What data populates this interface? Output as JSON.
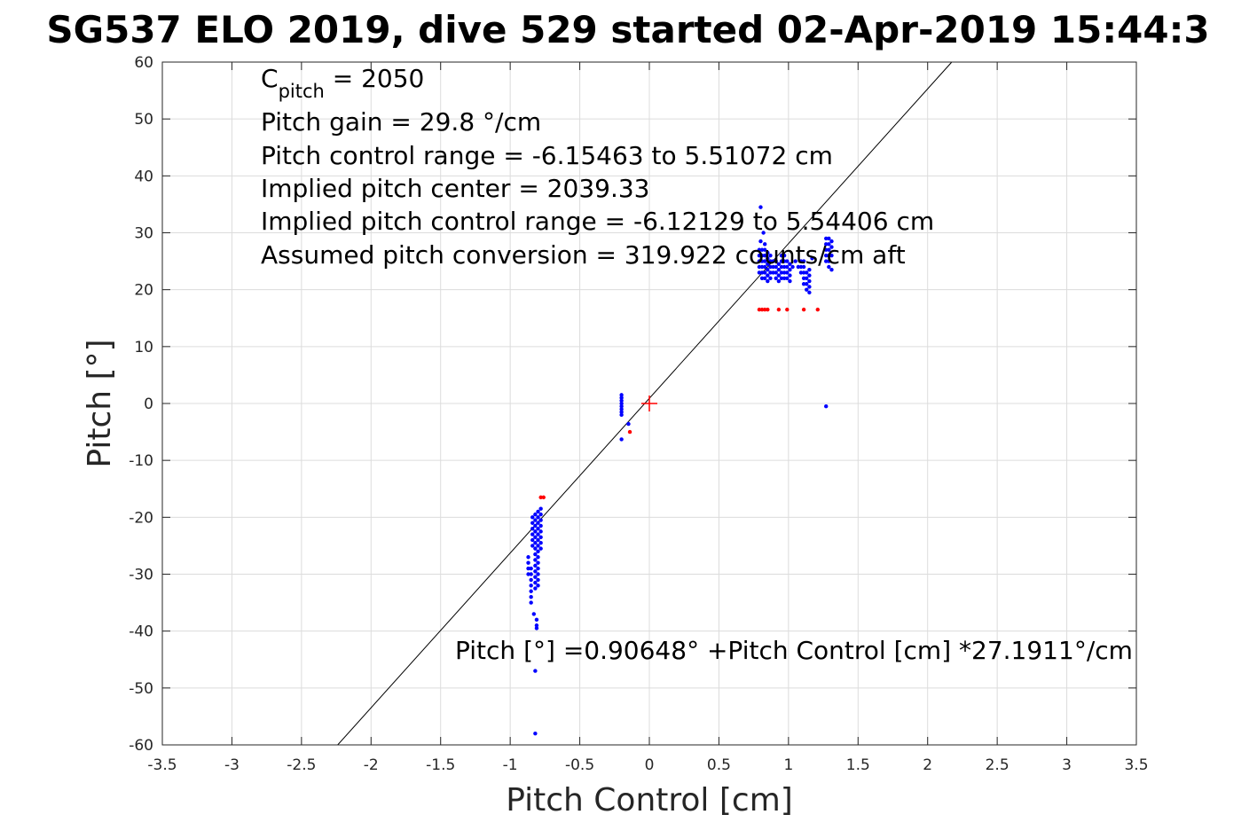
{
  "chart_data": {
    "type": "scatter",
    "title": "SG537 ELO 2019, dive 529 started 02-Apr-2019 15:44:3",
    "xlabel": "Pitch Control [cm]",
    "ylabel": "Pitch [°]",
    "xlim": [
      -3.5,
      3.5
    ],
    "ylim": [
      -60,
      60
    ],
    "xticks": [
      -3.5,
      -3,
      -2.5,
      -2,
      -1.5,
      -1,
      -0.5,
      0,
      0.5,
      1,
      1.5,
      2,
      2.5,
      3,
      3.5
    ],
    "xtick_labels": [
      "-3.5",
      "-3",
      "-2.5",
      "-2",
      "-1.5",
      "-1",
      "-0.5",
      "0",
      "0.5",
      "1",
      "1.5",
      "2",
      "2.5",
      "3",
      "3.5"
    ],
    "yticks": [
      -60,
      -50,
      -40,
      -30,
      -20,
      -10,
      0,
      10,
      20,
      30,
      40,
      50,
      60
    ],
    "ytick_labels": [
      "-60",
      "-50",
      "-40",
      "-30",
      "-20",
      "-10",
      "0",
      "10",
      "20",
      "30",
      "40",
      "50",
      "60"
    ],
    "grid": true,
    "annotations": {
      "c_pitch_main": "C",
      "c_pitch_sub": "pitch",
      "c_pitch_value": " = 2050",
      "pitch_gain": "Pitch gain = 29.8 °/cm",
      "pitch_control_range": "Pitch control range = -6.15463 to 5.51072 cm",
      "implied_pitch_center": "Implied pitch center = 2039.33",
      "implied_pitch_control_range": "Implied pitch control range = -6.12129 to 5.54406 cm",
      "assumed_pitch_conversion": "Assumed pitch conversion = 319.922 counts/cm aft",
      "fit_equation": "Pitch [°] =0.90648° +Pitch Control [cm] *27.1911°/cm"
    },
    "fit_line": {
      "intercept": 0.90648,
      "slope": 27.1911,
      "color": "#000000"
    },
    "center_marker": {
      "x": 0,
      "y": 0,
      "color": "#ff0000"
    },
    "series": [
      {
        "color": "#0000ff",
        "points": [
          [
            -0.82,
            -19.5
          ],
          [
            -0.82,
            -20.5
          ],
          [
            -0.82,
            -21.5
          ],
          [
            -0.82,
            -22.5
          ],
          [
            -0.82,
            -23.5
          ],
          [
            -0.82,
            -24.5
          ],
          [
            -0.82,
            -25.5
          ],
          [
            -0.82,
            -26.5
          ],
          [
            -0.82,
            -27.5
          ],
          [
            -0.82,
            -28.5
          ],
          [
            -0.82,
            -29.5
          ],
          [
            -0.82,
            -30.5
          ],
          [
            -0.82,
            -31.5
          ],
          [
            -0.82,
            -32.5
          ],
          [
            -0.8,
            -19.0
          ],
          [
            -0.8,
            -20.0
          ],
          [
            -0.8,
            -21.0
          ],
          [
            -0.8,
            -22.0
          ],
          [
            -0.8,
            -23.0
          ],
          [
            -0.8,
            -24.0
          ],
          [
            -0.8,
            -25.0
          ],
          [
            -0.8,
            -26.0
          ],
          [
            -0.8,
            -27.0
          ],
          [
            -0.8,
            -28.0
          ],
          [
            -0.8,
            -29.0
          ],
          [
            -0.8,
            -30.0
          ],
          [
            -0.8,
            -31.0
          ],
          [
            -0.8,
            -32.0
          ],
          [
            -0.84,
            -20.0
          ],
          [
            -0.84,
            -21.0
          ],
          [
            -0.84,
            -22.0
          ],
          [
            -0.84,
            -23.0
          ],
          [
            -0.84,
            -24.0
          ],
          [
            -0.84,
            -25.0
          ],
          [
            -0.78,
            -18.5
          ],
          [
            -0.78,
            -19.5
          ],
          [
            -0.78,
            -20.5
          ],
          [
            -0.78,
            -21.5
          ],
          [
            -0.78,
            -22.5
          ],
          [
            -0.78,
            -23.5
          ],
          [
            -0.78,
            -24.5
          ],
          [
            -0.78,
            -25.5
          ],
          [
            -0.87,
            -27.0
          ],
          [
            -0.87,
            -28.0
          ],
          [
            -0.87,
            -29.0
          ],
          [
            -0.87,
            -30.0
          ],
          [
            -0.85,
            -29.0
          ],
          [
            -0.85,
            -30.0
          ],
          [
            -0.85,
            -31.0
          ],
          [
            -0.85,
            -32.0
          ],
          [
            -0.85,
            -33.0
          ],
          [
            -0.85,
            -34.0
          ],
          [
            -0.85,
            -35.0
          ],
          [
            -0.83,
            -37.0
          ],
          [
            -0.81,
            -38.0
          ],
          [
            -0.81,
            -39.0
          ],
          [
            -0.81,
            -39.5
          ],
          [
            -0.82,
            -47.0
          ],
          [
            -0.82,
            -58.0
          ],
          [
            -0.2,
            1.5
          ],
          [
            -0.2,
            1.0
          ],
          [
            -0.2,
            0.5
          ],
          [
            -0.2,
            0.0
          ],
          [
            -0.2,
            -0.5
          ],
          [
            -0.2,
            -1.0
          ],
          [
            -0.2,
            -1.5
          ],
          [
            -0.2,
            -2.0
          ],
          [
            -0.2,
            -6.3
          ],
          [
            -0.15,
            -3.6
          ],
          [
            0.79,
            23.0
          ],
          [
            0.79,
            24.0
          ],
          [
            0.79,
            25.0
          ],
          [
            0.79,
            26.0
          ],
          [
            0.79,
            27.0
          ],
          [
            0.81,
            22.0
          ],
          [
            0.81,
            23.0
          ],
          [
            0.81,
            24.0
          ],
          [
            0.81,
            25.0
          ],
          [
            0.81,
            26.0
          ],
          [
            0.81,
            27.0
          ],
          [
            0.83,
            22.0
          ],
          [
            0.83,
            23.0
          ],
          [
            0.83,
            24.0
          ],
          [
            0.83,
            25.0
          ],
          [
            0.83,
            26.0
          ],
          [
            0.83,
            27.0
          ],
          [
            0.83,
            28.0
          ],
          [
            0.85,
            21.5
          ],
          [
            0.85,
            22.5
          ],
          [
            0.85,
            23.5
          ],
          [
            0.85,
            24.5
          ],
          [
            0.85,
            25.5
          ],
          [
            0.85,
            26.5
          ],
          [
            0.87,
            22.0
          ],
          [
            0.87,
            23.0
          ],
          [
            0.87,
            24.0
          ],
          [
            0.87,
            25.0
          ],
          [
            0.87,
            26.0
          ],
          [
            0.89,
            23.0
          ],
          [
            0.89,
            24.0
          ],
          [
            0.89,
            25.0
          ],
          [
            0.91,
            22.0
          ],
          [
            0.91,
            23.0
          ],
          [
            0.91,
            24.0
          ],
          [
            0.91,
            25.0
          ],
          [
            0.93,
            21.5
          ],
          [
            0.93,
            22.5
          ],
          [
            0.93,
            23.5
          ],
          [
            0.93,
            24.5
          ],
          [
            0.95,
            22.0
          ],
          [
            0.95,
            23.0
          ],
          [
            0.95,
            24.0
          ],
          [
            0.95,
            25.0
          ],
          [
            0.95,
            26.0
          ],
          [
            0.97,
            22.0
          ],
          [
            0.97,
            23.0
          ],
          [
            0.97,
            24.0
          ],
          [
            0.97,
            25.0
          ],
          [
            0.97,
            26.0
          ],
          [
            0.99,
            22.0
          ],
          [
            0.99,
            23.0
          ],
          [
            0.99,
            24.0
          ],
          [
            0.99,
            25.0
          ],
          [
            1.01,
            21.5
          ],
          [
            1.01,
            22.5
          ],
          [
            1.01,
            23.5
          ],
          [
            1.01,
            24.5
          ],
          [
            1.03,
            24.0
          ],
          [
            1.05,
            25.0
          ],
          [
            1.07,
            24.0
          ],
          [
            1.09,
            23.0
          ],
          [
            1.09,
            24.0
          ],
          [
            1.09,
            25.0
          ],
          [
            1.11,
            21.0
          ],
          [
            1.11,
            22.0
          ],
          [
            1.11,
            23.0
          ],
          [
            1.11,
            24.0
          ],
          [
            1.11,
            25.0
          ],
          [
            1.13,
            20.0
          ],
          [
            1.13,
            21.0
          ],
          [
            1.13,
            22.0
          ],
          [
            1.13,
            23.0
          ],
          [
            1.15,
            19.5
          ],
          [
            1.15,
            20.5
          ],
          [
            1.15,
            21.5
          ],
          [
            1.15,
            22.5
          ],
          [
            1.15,
            23.5
          ],
          [
            1.17,
            25.5
          ],
          [
            0.8,
            28.5
          ],
          [
            0.8,
            34.5
          ],
          [
            0.82,
            30.0
          ],
          [
            1.27,
            25.0
          ],
          [
            1.27,
            26.0
          ],
          [
            1.27,
            27.0
          ],
          [
            1.27,
            28.0
          ],
          [
            1.27,
            29.0
          ],
          [
            1.29,
            24.0
          ],
          [
            1.29,
            25.0
          ],
          [
            1.29,
            26.0
          ],
          [
            1.29,
            27.0
          ],
          [
            1.29,
            28.0
          ],
          [
            1.29,
            29.0
          ],
          [
            1.31,
            23.5
          ],
          [
            1.31,
            26.0
          ],
          [
            1.31,
            27.5
          ],
          [
            1.31,
            28.5
          ],
          [
            1.27,
            -0.5
          ]
        ]
      },
      {
        "color": "#ff0000",
        "points": [
          [
            -0.78,
            -16.5
          ],
          [
            -0.76,
            -16.5
          ],
          [
            -0.14,
            -5.0
          ],
          [
            0.79,
            16.5
          ],
          [
            0.81,
            16.5
          ],
          [
            0.83,
            16.5
          ],
          [
            0.85,
            16.5
          ],
          [
            0.93,
            16.5
          ],
          [
            0.99,
            16.5
          ],
          [
            1.11,
            16.5
          ],
          [
            1.21,
            16.5
          ]
        ]
      }
    ]
  }
}
